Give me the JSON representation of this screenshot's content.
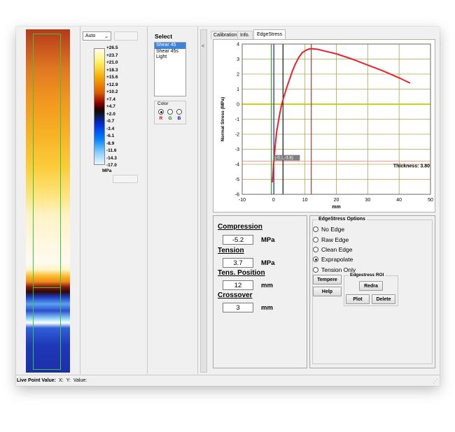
{
  "colormap_panel": {
    "scale_mode": "Auto",
    "unit_label": "MPa",
    "ticks": [
      "+26.5",
      "+23.7",
      "+21.0",
      "+18.3",
      "+15.6",
      "+12.9",
      "+10.2",
      "+7.4",
      "+4.7",
      "+2.0",
      "-0.7",
      "-3.4",
      "-6.1",
      "-8.9",
      "-11.6",
      "-14.3",
      "-17.0"
    ]
  },
  "select_panel": {
    "title": "Select",
    "items": [
      "Shear 45",
      "Shear 45s",
      "Light"
    ],
    "selected_index": 0,
    "color_group_label": "Color",
    "color_options": [
      {
        "label": "R",
        "color": "#d00000",
        "checked": true
      },
      {
        "label": "G",
        "color": "#008000",
        "checked": false
      },
      {
        "label": "B",
        "color": "#0000d0",
        "checked": false
      }
    ]
  },
  "splitter": {
    "arrow": "<"
  },
  "tabs": [
    {
      "label": "Calibration",
      "active": false
    },
    {
      "label": "Info.",
      "active": false
    },
    {
      "label": "EdgeStress",
      "active": true
    }
  ],
  "chart_data": {
    "type": "line",
    "ylabel": "Normal Stress (MPa)",
    "xlabel": "mm",
    "xlim": [
      -10,
      50
    ],
    "ylim": [
      -6,
      4
    ],
    "xticks": [
      -10,
      0,
      10,
      20,
      30,
      40,
      50
    ],
    "yticks": [
      4,
      3,
      2,
      1,
      0,
      -1,
      -2,
      -3,
      -4,
      -5,
      -6
    ],
    "grid": true,
    "series": [
      {
        "color": "#e8232a",
        "x": [
          -0.4,
          -0.2,
          0,
          0.3,
          0.6,
          1,
          1.5,
          2,
          2.5,
          3,
          4,
          5,
          6,
          7,
          8,
          9,
          10,
          11,
          12,
          14,
          17,
          20,
          25,
          30,
          35,
          40,
          43.5
        ],
        "y": [
          -5.2,
          -4.7,
          -4.0,
          -3.3,
          -2.6,
          -1.8,
          -1.2,
          -0.6,
          -0.1,
          0.3,
          1.0,
          1.6,
          2.2,
          2.7,
          3.1,
          3.4,
          3.55,
          3.65,
          3.7,
          3.65,
          3.5,
          3.35,
          3.0,
          2.6,
          2.2,
          1.75,
          1.4
        ]
      }
    ],
    "vertical_markers": [
      {
        "x": -0.7,
        "color": "#2ca02c"
      },
      {
        "x": 0.1,
        "color": "#2b2bd6"
      },
      {
        "x": 3,
        "color": "#111111"
      },
      {
        "x": 12,
        "color": "#c83232"
      }
    ],
    "horizontal_markers": [
      {
        "y": 0,
        "color": "#c8c800"
      },
      {
        "y": -3.8,
        "color": "#e88b8b"
      }
    ],
    "cursor_label": "(-0.1,-3.8)",
    "thickness_label": "Thickness: 3.80"
  },
  "measurements": [
    {
      "label": "Compression",
      "value": "-5.2",
      "unit": "MPa"
    },
    {
      "label": "Tension",
      "value": "3.7",
      "unit": "MPa"
    },
    {
      "label": "Tens. Position",
      "value": "12",
      "unit": "mm"
    },
    {
      "label": "Crossover",
      "value": "3",
      "unit": "mm"
    }
  ],
  "edgestress_options": {
    "title": "EdgeStress Options",
    "options": [
      "No Edge",
      "Raw Edge",
      "Clean Edge",
      "Exprapolate",
      "Tension Only"
    ],
    "selected_index": 3,
    "tempere_button": "Tempere",
    "help_button": "Help",
    "roi_title": "Edgestress ROI",
    "redraw_button": "Redra",
    "plot_button": "Plot",
    "delete_button": "Delete"
  },
  "statusbar": {
    "live_point_label": "Live Point Value:",
    "x_label": "X:",
    "y_label": "Y:",
    "value_label": "Value:"
  }
}
